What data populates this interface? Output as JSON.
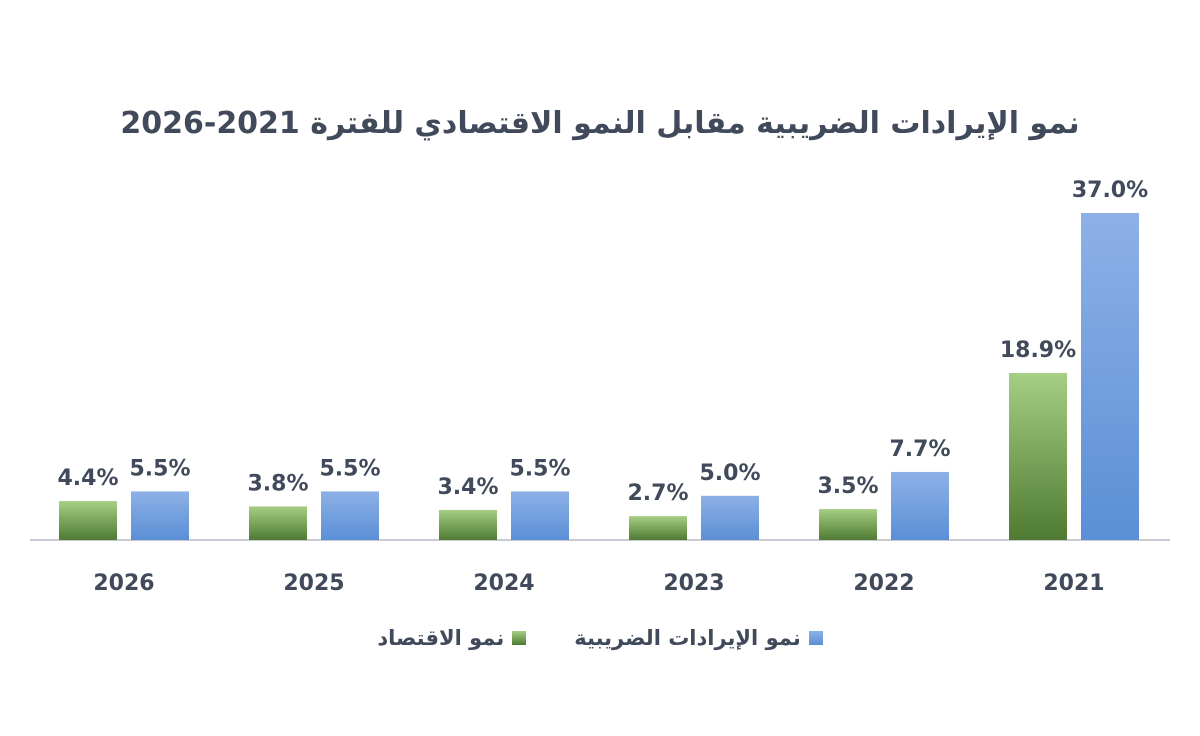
{
  "chart_data": {
    "type": "bar",
    "title": "نمو الإيرادات الضريبية مقابل النمو الاقتصادي للفترة 2021-2026",
    "categories": [
      "2021",
      "2022",
      "2023",
      "2024",
      "2025",
      "2026"
    ],
    "x_axis_direction": "right-to-left",
    "series": [
      {
        "name": "نمو الإيرادات الضريبية",
        "values": [
          37.0,
          7.7,
          5.0,
          5.5,
          5.5,
          5.5
        ],
        "color": "#5b8fd6",
        "color_light": "#8db1e6"
      },
      {
        "name": "نمو الاقتصاد",
        "values": [
          18.9,
          3.5,
          2.7,
          3.4,
          3.8,
          4.4
        ],
        "color": "#4e7a32",
        "color_light": "#a6cf85"
      }
    ],
    "value_format": "percent_one_decimal",
    "ylim": [
      0,
      37.0
    ],
    "gridlines": false,
    "legend_position": "bottom"
  },
  "colors": {
    "text": "#404a5a",
    "axis": "#c8ccd2"
  }
}
